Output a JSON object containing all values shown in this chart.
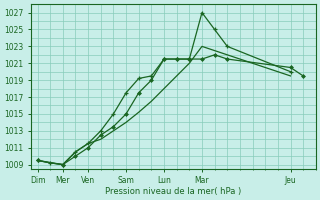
{
  "background_color": "#c8eee8",
  "grid_color": "#88ccbb",
  "line_color": "#1a6622",
  "xlabel": "Pression niveau de la mer( hPa )",
  "ylim": [
    1008.5,
    1028
  ],
  "yticks": [
    1009,
    1011,
    1013,
    1015,
    1017,
    1019,
    1021,
    1023,
    1025,
    1027
  ],
  "xtick_positions": [
    0,
    2,
    4,
    7,
    10,
    13,
    20
  ],
  "xtick_labels": [
    "Dim",
    "Mer",
    "Ven",
    "Sam",
    "Lun",
    "Mar",
    "Jeu"
  ],
  "xlim": [
    -0.5,
    22
  ],
  "line1_x": [
    0,
    1,
    2,
    3,
    4,
    5,
    6,
    7,
    8,
    9,
    10,
    11,
    12,
    13,
    20
  ],
  "line1_y": [
    1009.5,
    1009.2,
    1009.0,
    1010.5,
    1011.5,
    1012.0,
    1013.0,
    1014.0,
    1015.2,
    1016.5,
    1018.0,
    1019.5,
    1021.0,
    1023.0,
    1019.5
  ],
  "line2_x": [
    0,
    1,
    2,
    3,
    4,
    5,
    6,
    7,
    8,
    9,
    10,
    11,
    12,
    13,
    14,
    15,
    20
  ],
  "line2_y": [
    1009.5,
    1009.2,
    1009.0,
    1010.5,
    1011.5,
    1013.0,
    1015.0,
    1017.5,
    1019.2,
    1019.5,
    1021.5,
    1021.5,
    1021.5,
    1027.0,
    1025.0,
    1023.0,
    1020.0
  ],
  "line3_x": [
    0,
    2,
    3,
    4,
    5,
    6,
    7,
    8,
    9,
    10,
    11,
    12,
    13,
    14,
    15,
    20,
    21
  ],
  "line3_y": [
    1009.5,
    1009.0,
    1010.0,
    1011.0,
    1012.5,
    1013.5,
    1015.0,
    1017.5,
    1019.0,
    1021.5,
    1021.5,
    1021.5,
    1021.5,
    1022.0,
    1021.5,
    1020.5,
    1019.5
  ]
}
